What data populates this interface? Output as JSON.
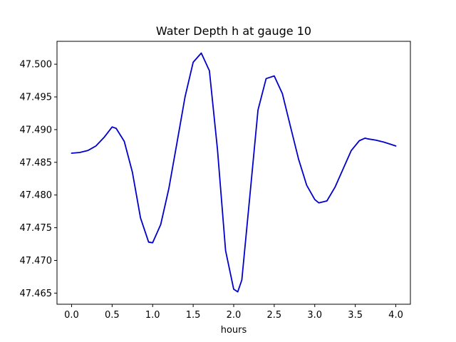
{
  "chart_data": {
    "type": "line",
    "title": "Water Depth h at gauge 10",
    "xlabel": "hours",
    "ylabel": "",
    "xlim": [
      -0.18,
      4.18
    ],
    "ylim": [
      47.4633,
      47.5035
    ],
    "x_ticks": [
      0.0,
      0.5,
      1.0,
      1.5,
      2.0,
      2.5,
      3.0,
      3.5,
      4.0
    ],
    "x_tick_labels": [
      "0.0",
      "0.5",
      "1.0",
      "1.5",
      "2.0",
      "2.5",
      "3.0",
      "3.5",
      "4.0"
    ],
    "y_ticks": [
      47.465,
      47.47,
      47.475,
      47.48,
      47.485,
      47.49,
      47.495,
      47.5
    ],
    "y_tick_labels": [
      "47.465",
      "47.470",
      "47.475",
      "47.480",
      "47.485",
      "47.490",
      "47.495",
      "47.500"
    ],
    "grid": false,
    "legend": "none",
    "series": [
      {
        "color": "#0000cc",
        "x": [
          0.0,
          0.1,
          0.2,
          0.3,
          0.4,
          0.5,
          0.55,
          0.65,
          0.75,
          0.85,
          0.95,
          1.0,
          1.1,
          1.2,
          1.3,
          1.4,
          1.5,
          1.6,
          1.7,
          1.8,
          1.9,
          2.0,
          2.05,
          2.1,
          2.2,
          2.3,
          2.4,
          2.5,
          2.6,
          2.7,
          2.8,
          2.9,
          3.0,
          3.05,
          3.15,
          3.25,
          3.35,
          3.45,
          3.55,
          3.62,
          3.65,
          3.75,
          3.85,
          3.95,
          4.0
        ],
        "y": [
          47.4864,
          47.4865,
          47.4868,
          47.4875,
          47.4888,
          47.4904,
          47.4902,
          47.4882,
          47.4835,
          47.4765,
          47.4728,
          47.4727,
          47.4755,
          47.481,
          47.488,
          47.495,
          47.5003,
          47.5017,
          47.499,
          47.487,
          47.4715,
          47.4656,
          47.4652,
          47.467,
          47.48,
          47.493,
          47.4978,
          47.4982,
          47.4955,
          47.4905,
          47.4855,
          47.4815,
          47.4793,
          47.4788,
          47.4791,
          47.4812,
          47.484,
          47.4868,
          47.4883,
          47.4887,
          47.4886,
          47.4884,
          47.4881,
          47.4877,
          47.4875
        ]
      }
    ]
  }
}
